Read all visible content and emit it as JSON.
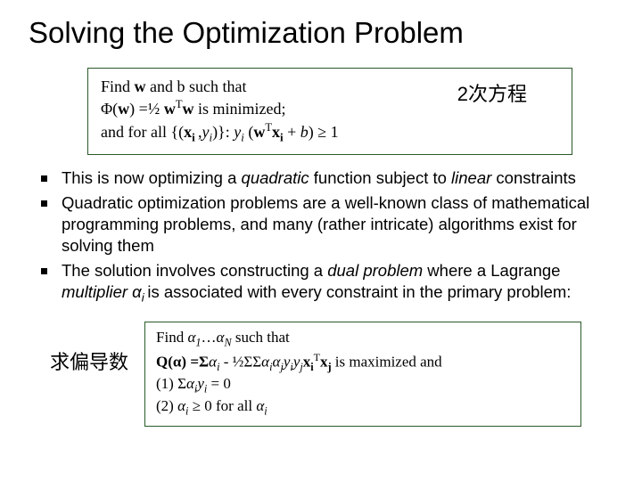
{
  "title": "Solving the Optimization Problem",
  "box1": {
    "line1_pre": "Find ",
    "line1_bold1": "w",
    "line1_mid": " and b such that",
    "line2_pre": "Φ(",
    "line2_bold": "w",
    "line2_mid": ") =½ ",
    "line2_bold2": "w",
    "line2_sup": "T",
    "line2_bold3": "w",
    "line2_end": "  is minimized;",
    "line3_pre": "and for all {(",
    "line3_bold1": "x",
    "line3_sub1": "i ",
    "line3_mid1": " ,",
    "line3_ital1": "y",
    "line3_sub2": "i",
    "line3_mid2": ")}:  ",
    "line3_ital2": "y",
    "line3_sub3": "i",
    "line3_mid3": " (",
    "line3_bold2": "w",
    "line3_sup2": "T",
    "line3_bold3": "x",
    "line3_sub4": "i",
    "line3_mid4": " + ",
    "line3_ital3": "b",
    "line3_end": ") ≥ 1"
  },
  "annotation1": "2次方程",
  "bullets": [
    {
      "pre": "This is now optimizing a ",
      "it1": "quadratic",
      "mid": " function subject to ",
      "it2": "linear",
      "end": " constraints"
    },
    {
      "text": "Quadratic optimization problems are a well-known class of mathematical programming problems, and many (rather intricate) algorithms exist for solving them"
    },
    {
      "pre": "The solution involves constructing a ",
      "it1": "dual problem",
      "mid": " where a Lagrange ",
      "it2": "multiplier α",
      "sub": "i ",
      "end": "is associated with every constraint in the primary problem:"
    }
  ],
  "annotation2": "求偏导数",
  "box2": {
    "l1_pre": "Find ",
    "l1_i1": "α",
    "l1_s1": "1",
    "l1_mid": "…",
    "l1_i2": "α",
    "l1_s2": "N",
    "l1_end": " such that",
    "l2_pre": "Q(",
    "l2_b1": "α",
    "l2_mid1": ") =Σ",
    "l2_i1": "α",
    "l2_s1": "i",
    "l2_mid2": " - ½ΣΣ",
    "l2_i2": "α",
    "l2_s2": "i",
    "l2_i3": "α",
    "l2_s3": "j",
    "l2_i4": "y",
    "l2_s4": "i",
    "l2_i5": "y",
    "l2_s5": "j",
    "l2_b2": "x",
    "l2_s6": "i",
    "l2_sup": "T",
    "l2_b3": "x",
    "l2_s7": "j",
    "l2_end": " is maximized and",
    "l3_pre": "(1)  Σ",
    "l3_i1": "α",
    "l3_s1": "i",
    "l3_i2": "y",
    "l3_s2": "i",
    "l3_end": " = 0",
    "l4_pre": "(2) ",
    "l4_i1": "α",
    "l4_s1": "i",
    "l4_mid": " ≥ 0 for all ",
    "l4_i2": "α",
    "l4_s2": "i"
  },
  "colors": {
    "box_border": "#2a5a2a",
    "text": "#000000",
    "background": "#ffffff"
  }
}
